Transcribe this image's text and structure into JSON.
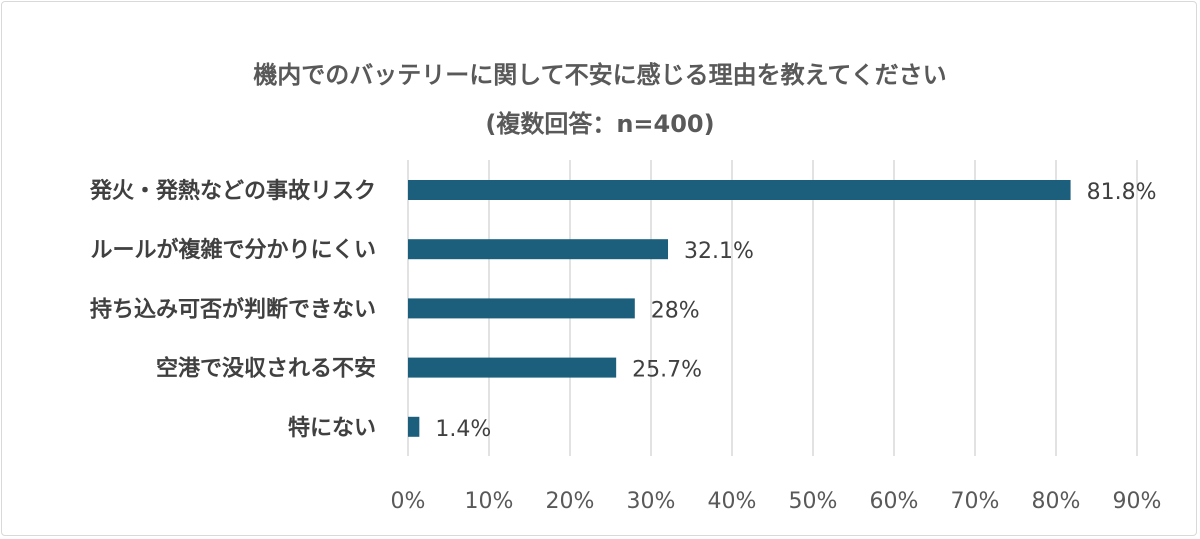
{
  "chart_data": {
    "type": "bar",
    "orientation": "horizontal",
    "title": "機内でのバッテリーに関して不安に感じる理由を教えてください",
    "subtitle": "(複数回答：n=400)",
    "categories": [
      "発火・発熱などの事故リスク",
      "ルールが複雑で分かりにくい",
      "持ち込み可否が判断できない",
      "空港で没収される不安",
      "特にない"
    ],
    "values": [
      81.8,
      32.1,
      28,
      25.7,
      1.4
    ],
    "data_labels": [
      "81.8%",
      "32.1%",
      "28%",
      "25.7%",
      "1.4%"
    ],
    "xlim": [
      0,
      90
    ],
    "x_ticks": [
      "0%",
      "10%",
      "20%",
      "30%",
      "40%",
      "50%",
      "60%",
      "70%",
      "80%",
      "90%"
    ],
    "grid": "vertical",
    "legend": "none",
    "bar_color": "#1b5f7d",
    "grid_color": "#d9d9d9"
  }
}
